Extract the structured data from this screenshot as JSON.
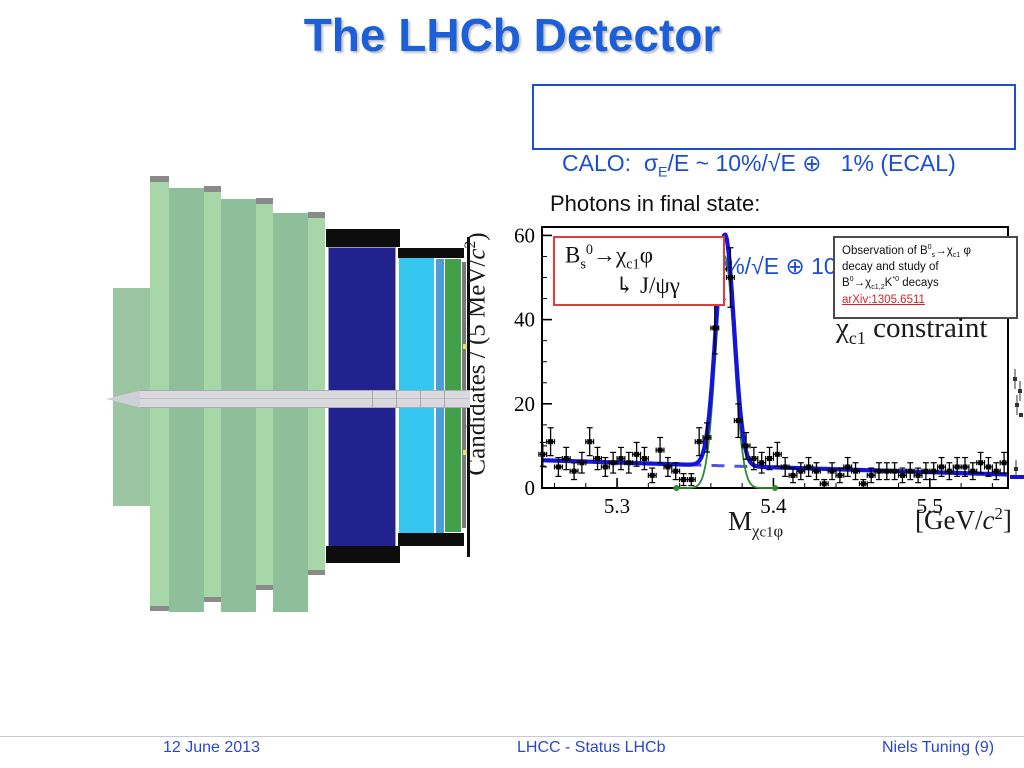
{
  "title": "The LHCb Detector",
  "calo": {
    "line1": [
      {
        "t": "CALO:  "
      },
      {
        "t": "σ"
      },
      {
        "t": "E",
        "s": "sub"
      },
      {
        "t": "/E ~ 10%/√E ⊕   1% (ECAL)"
      }
    ],
    "line2": [
      {
        "t": "σ"
      },
      {
        "t": "E",
        "s": "sub"
      },
      {
        "t": "/E ~ 70%/√E ⊕ 10% (HCAL)"
      }
    ]
  },
  "photons_label": "Photons in final state:",
  "decay_box": {
    "line1": [
      {
        "t": "B"
      },
      {
        "t": "s",
        "s": "sub"
      },
      {
        "t": "0",
        "s": "sup"
      },
      {
        "t": "→χ"
      },
      {
        "t": "c1",
        "s": "sub"
      },
      {
        "t": "φ"
      }
    ],
    "line2": [
      {
        "t": "↳ J/ψγ"
      }
    ]
  },
  "observation_box": {
    "line1": [
      {
        "t": "Observation of B"
      },
      {
        "t": "0",
        "s": "sup"
      },
      {
        "t": "s",
        "s": "sub"
      },
      {
        "t": "→χ"
      },
      {
        "t": "c1",
        "s": "sub"
      },
      {
        "t": " φ"
      }
    ],
    "line2": [
      {
        "t": "decay and study of"
      }
    ],
    "line3": [
      {
        "t": "B"
      },
      {
        "t": "0",
        "s": "sup"
      },
      {
        "t": "→χ"
      },
      {
        "t": "c1,2",
        "s": "sub"
      },
      {
        "t": "K"
      },
      {
        "t": "*0",
        "s": "sup"
      },
      {
        "t": " decays"
      }
    ],
    "link_text": "arXiv:1305.6511"
  },
  "constraint_label": [
    {
      "t": "χ"
    },
    {
      "t": "c1",
      "s": "sub"
    },
    {
      "t": " constraint"
    }
  ],
  "footer": {
    "date": "12 June 2013",
    "center": "LHCC - Status LHCb",
    "right": "Niels Tuning (9)"
  },
  "colors": {
    "title_blue": "#1c5fd8",
    "footer_blue": "#2946cf",
    "calo_blue": "#1b4ed3",
    "link_red": "#e02020",
    "decay_box_red": "#e23b3b",
    "detector_navy": "#22228e",
    "detector_cyan": "#35c6f0",
    "detector_ecal_green": "#42a04a",
    "detector_slab_front_green": "#a7d7a9",
    "detector_slab_side_green": "#8fbf9a"
  },
  "chart_data": {
    "type": "scatter",
    "title": "",
    "ylabel_segments": [
      {
        "t": "Candidates / (5 MeV/"
      },
      {
        "t": "c",
        "s": "i"
      },
      {
        "t": "2",
        "s": "sup"
      },
      {
        "t": ")"
      }
    ],
    "xlabel_segments": [
      {
        "t": "M"
      },
      {
        "t": "χ",
        "s": "sub"
      },
      {
        "t": "c1",
        "s": "subsub"
      },
      {
        "t": "φ",
        "s": "sub"
      }
    ],
    "unit_segments": [
      {
        "t": "[GeV/"
      },
      {
        "t": "c",
        "s": "i"
      },
      {
        "t": "2",
        "s": "sup"
      },
      {
        "t": "]"
      }
    ],
    "xlim": [
      5.252,
      5.55
    ],
    "ylim": [
      0,
      62
    ],
    "xticks": [
      5.3,
      5.4,
      5.5
    ],
    "yticks": [
      0,
      20,
      40,
      60
    ],
    "x_minor_step": 0.02,
    "y_minor_step": 5,
    "grid": false,
    "legend_position": "none",
    "bin_width_gev": 0.005,
    "points": {
      "x_start": 5.2525,
      "x_step": 0.005,
      "y": [
        8,
        11,
        5,
        7,
        4,
        6,
        11,
        7,
        5,
        6,
        7,
        6,
        8,
        7,
        3,
        9,
        5,
        4,
        2,
        2,
        11,
        12,
        38,
        52,
        50,
        16,
        10,
        7,
        6,
        7,
        8,
        5,
        3,
        4,
        5,
        4,
        1,
        4,
        3,
        5,
        4,
        1,
        3,
        4,
        4,
        4,
        3,
        4,
        3,
        4,
        4,
        5,
        4,
        5,
        5,
        4,
        6,
        5,
        4,
        6
      ]
    },
    "fit": {
      "bg_left": 6.6,
      "bg_right": 3.2,
      "gauss_amp": 55,
      "gauss_mean": 5.369,
      "gauss_sigma": 0.0058,
      "dash_range": [
        5.331,
        5.419
      ],
      "signal_range": [
        5.338,
        5.401
      ]
    },
    "colors": {
      "fit": "#1414dd",
      "signal": "#2e8b2e",
      "background_dash": "#5353e2",
      "points": "#000000"
    }
  }
}
